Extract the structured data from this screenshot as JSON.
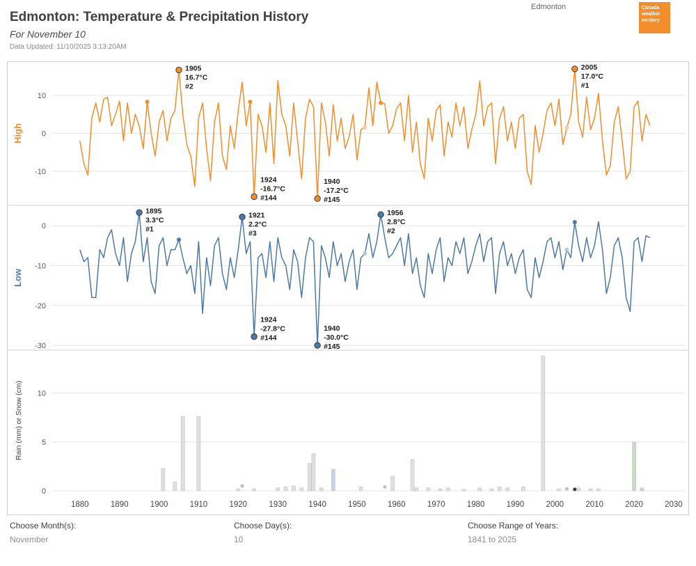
{
  "header": {
    "title": "Edmonton: Temperature & Precipitation History",
    "subtitle": "For November 10",
    "updated": "Data Updated: 11/10/2025 3:13:20AM",
    "station_label": "Edmonton",
    "logo_lines": [
      "Canada",
      "weather",
      "nerdery"
    ]
  },
  "filters": {
    "month_label": "Choose Month(s):",
    "month_value": "November",
    "day_label": "Choose Day(s):",
    "day_value": "10",
    "range_label": "Choose Range of Years:",
    "range_value": "1841 to 2025"
  },
  "colors": {
    "high": "#f28e2b",
    "low": "#4e79a7",
    "grid": "#e4e4e4",
    "border": "#cfcfcf",
    "axis_text": "#3d3d3d",
    "bar_stroke": "#c2c2c2",
    "bar": {
      "mixed": "#e0e0e0",
      "rain": "#c9d3e8",
      "snow": "#c6ddc2"
    }
  },
  "xaxis": {
    "range": [
      1873,
      2033
    ],
    "ticks": [
      1880,
      1890,
      1900,
      1910,
      1920,
      1930,
      1940,
      1950,
      1960,
      1970,
      1980,
      1990,
      2000,
      2010,
      2020,
      2030
    ]
  },
  "chart_data": [
    {
      "type": "line",
      "title": "High",
      "ylabel": "High",
      "color": "#f28e2b",
      "faint_color": "#f6cdaa",
      "ylim": [
        -19,
        19
      ],
      "yticks": [
        10,
        0,
        -10
      ],
      "x_start": 1880,
      "values": [
        -2,
        -8,
        -11,
        4,
        8,
        3,
        9,
        9.5,
        2,
        5,
        8.5,
        -2,
        8,
        0,
        5,
        2,
        -4,
        8.3,
        0,
        -6,
        3,
        6,
        -2,
        4,
        6,
        16.7,
        5,
        -3,
        -6,
        -14,
        4,
        8,
        -4,
        -12.5,
        3,
        8,
        -6,
        -9.5,
        2,
        -4,
        6,
        13.5,
        2,
        8.3,
        -16.7,
        5,
        2,
        -5,
        8,
        -8,
        13.9,
        5,
        2,
        -6,
        8,
        -2,
        -12,
        4,
        9,
        7,
        -17.2,
        8,
        3,
        -6,
        7.5,
        -2,
        4,
        -4,
        -1,
        5,
        -7,
        1,
        1.5,
        12,
        2,
        13.5,
        8,
        7.8,
        0,
        2,
        6.5,
        8,
        -2,
        10,
        -5,
        3,
        -8,
        -12,
        4,
        -2,
        6,
        7.5,
        -6,
        3,
        -1,
        8,
        2,
        7,
        -4,
        1,
        5,
        13.8,
        2,
        7,
        8,
        -8,
        4,
        7,
        -2,
        3,
        -4,
        4,
        5,
        -10,
        -13.5,
        2,
        -5,
        0,
        6,
        8,
        2,
        9,
        -3,
        1.5,
        5,
        17,
        3,
        -1,
        9.5,
        1,
        4,
        10.5,
        -2,
        -11,
        -8.5,
        3,
        7,
        -2,
        -12,
        -10,
        7,
        8.5,
        -2,
        5,
        2
      ],
      "annotations": [
        {
          "year": 1905,
          "value": 16.7,
          "lines": [
            "1905",
            "16.7°C",
            "#2"
          ],
          "placement": "right"
        },
        {
          "year": 2005,
          "value": 17.0,
          "lines": [
            "2005",
            "17.0°C",
            "#1"
          ],
          "placement": "right"
        },
        {
          "year": 1924,
          "value": -16.7,
          "lines": [
            "1924",
            "-16.7°C",
            "#144"
          ],
          "placement": "right-up"
        },
        {
          "year": 1940,
          "value": -17.2,
          "lines": [
            "1940",
            "-17.2°C",
            "#145"
          ],
          "placement": "right-up"
        }
      ],
      "dots": [
        {
          "year": 1897,
          "value": 8.3
        },
        {
          "year": 1923,
          "value": 8.3
        },
        {
          "year": 1956,
          "value": 8
        }
      ],
      "faint_dots": [
        {
          "year": 1952,
          "value": 1.5
        },
        {
          "year": 2003,
          "value": 1.5
        }
      ]
    },
    {
      "type": "line",
      "title": "Low",
      "ylabel": "Low",
      "color": "#4e79a7",
      "faint_color": "#b9c9dc",
      "ylim": [
        -31.2,
        5.1
      ],
      "yticks": [
        0,
        -10,
        -20,
        -30
      ],
      "x_start": 1880,
      "values": [
        -6,
        -9,
        -8,
        -18,
        -18,
        -6,
        -8,
        -3,
        -1,
        -7,
        -10,
        -3,
        -14,
        -7,
        -4,
        3.3,
        -9,
        -3,
        -14,
        -17,
        -5,
        -3,
        -10,
        -6,
        -6,
        -3.5,
        -8,
        -12,
        -10,
        -17,
        -4,
        -22,
        -8,
        -15,
        -5,
        -3,
        -12,
        -16,
        -8,
        -13,
        -6,
        2.2,
        -7,
        -4,
        -27.8,
        -8,
        -7,
        -13,
        -4,
        -14,
        -3,
        -8,
        -10,
        -16,
        -6,
        -9,
        -18,
        -8,
        -3,
        -4,
        -30,
        -5,
        -8,
        -13,
        -4,
        -10,
        -7,
        -14,
        -9,
        -6,
        -16,
        -8,
        -7,
        -2,
        -8,
        -4,
        2.8,
        -3,
        -8,
        -7,
        -5,
        -3,
        -10,
        -2,
        -12,
        -8,
        -15,
        -18,
        -7,
        -12,
        -6,
        -3,
        -14,
        -8,
        -10,
        -4,
        -7,
        -3,
        -12,
        -9,
        -5,
        -2,
        -9,
        -4,
        -3,
        -17,
        -7,
        -4,
        -10,
        -7,
        -12,
        -8,
        -6,
        -16,
        -18,
        -8,
        -13,
        -9,
        -4,
        -3,
        -8,
        -4,
        -11,
        -6,
        -8,
        0.9,
        -5,
        -9,
        -3,
        -8,
        -5,
        1,
        -6,
        -17,
        -13,
        -5,
        -3,
        -8,
        -18,
        -21.5,
        -4,
        -3,
        -9,
        -2.5,
        -3
      ],
      "annotations": [
        {
          "year": 1895,
          "value": 3.3,
          "lines": [
            "1895",
            "3.3°C",
            "#1"
          ],
          "placement": "right"
        },
        {
          "year": 1921,
          "value": 2.2,
          "lines": [
            "1921",
            "2.2°C",
            "#3"
          ],
          "placement": "right"
        },
        {
          "year": 1956,
          "value": 2.8,
          "lines": [
            "1956",
            "2.8°C",
            "#2"
          ],
          "placement": "right"
        },
        {
          "year": 1924,
          "value": -27.8,
          "lines": [
            "1924",
            "-27.8°C",
            "#144"
          ],
          "placement": "right-up"
        },
        {
          "year": 1940,
          "value": -30.0,
          "lines": [
            "1940",
            "-30.0°C",
            "#145"
          ],
          "placement": "right-up"
        }
      ],
      "dots": [
        {
          "year": 1905,
          "value": -3.5
        },
        {
          "year": 2005,
          "value": 0.9
        }
      ],
      "faint_dots": [
        {
          "year": 1952,
          "value": -7
        },
        {
          "year": 2003,
          "value": -6
        }
      ]
    },
    {
      "type": "bar",
      "title": "Precipitation",
      "ylabel": "Rain (mm) or Snow (cm)",
      "ylim": [
        0,
        14.4
      ],
      "yticks": [
        10,
        5,
        0
      ],
      "bars": [
        {
          "year": 1901,
          "value": 2.3,
          "kind": "mixed"
        },
        {
          "year": 1904,
          "value": 0.9,
          "kind": "mixed"
        },
        {
          "year": 1906,
          "value": 7.6,
          "kind": "mixed"
        },
        {
          "year": 1910,
          "value": 7.6,
          "kind": "mixed"
        },
        {
          "year": 1920,
          "value": 0.2,
          "kind": "mixed"
        },
        {
          "year": 1924,
          "value": 0.2,
          "kind": "mixed"
        },
        {
          "year": 1930,
          "value": 0.3,
          "kind": "mixed"
        },
        {
          "year": 1932,
          "value": 0.4,
          "kind": "mixed"
        },
        {
          "year": 1934,
          "value": 0.5,
          "kind": "mixed"
        },
        {
          "year": 1936,
          "value": 0.3,
          "kind": "mixed"
        },
        {
          "year": 1938,
          "value": 2.8,
          "kind": "mixed"
        },
        {
          "year": 1939,
          "value": 3.8,
          "kind": "mixed"
        },
        {
          "year": 1941,
          "value": 0.3,
          "kind": "mixed"
        },
        {
          "year": 1944,
          "value": 2.2,
          "kind": "rain"
        },
        {
          "year": 1951,
          "value": 0.4,
          "kind": "mixed"
        },
        {
          "year": 1959,
          "value": 1.5,
          "kind": "mixed"
        },
        {
          "year": 1964,
          "value": 3.2,
          "kind": "mixed"
        },
        {
          "year": 1965,
          "value": 0.3,
          "kind": "mixed"
        },
        {
          "year": 1968,
          "value": 0.3,
          "kind": "mixed"
        },
        {
          "year": 1971,
          "value": 0.2,
          "kind": "mixed"
        },
        {
          "year": 1973,
          "value": 0.3,
          "kind": "mixed"
        },
        {
          "year": 1977,
          "value": 0.15,
          "kind": "mixed"
        },
        {
          "year": 1981,
          "value": 0.3,
          "kind": "mixed"
        },
        {
          "year": 1984,
          "value": 0.2,
          "kind": "mixed"
        },
        {
          "year": 1986,
          "value": 0.4,
          "kind": "mixed"
        },
        {
          "year": 1988,
          "value": 0.3,
          "kind": "mixed"
        },
        {
          "year": 1992,
          "value": 0.4,
          "kind": "mixed"
        },
        {
          "year": 1997,
          "value": 13.8,
          "kind": "mixed"
        },
        {
          "year": 2001,
          "value": 0.2,
          "kind": "mixed"
        },
        {
          "year": 2006,
          "value": 0.3,
          "kind": "mixed"
        },
        {
          "year": 2009,
          "value": 0.2,
          "kind": "mixed"
        },
        {
          "year": 2011,
          "value": 0.2,
          "kind": "mixed"
        },
        {
          "year": 2020,
          "value": 5.0,
          "kind": "snow"
        },
        {
          "year": 2022,
          "value": 0.3,
          "kind": "snow"
        }
      ],
      "dots": [
        {
          "year": 1921,
          "value": 0.5
        },
        {
          "year": 1957,
          "value": 0.4
        },
        {
          "year": 2003,
          "value": 0.2
        },
        {
          "year": 2005,
          "value": 0.15,
          "dark": true
        }
      ]
    }
  ]
}
